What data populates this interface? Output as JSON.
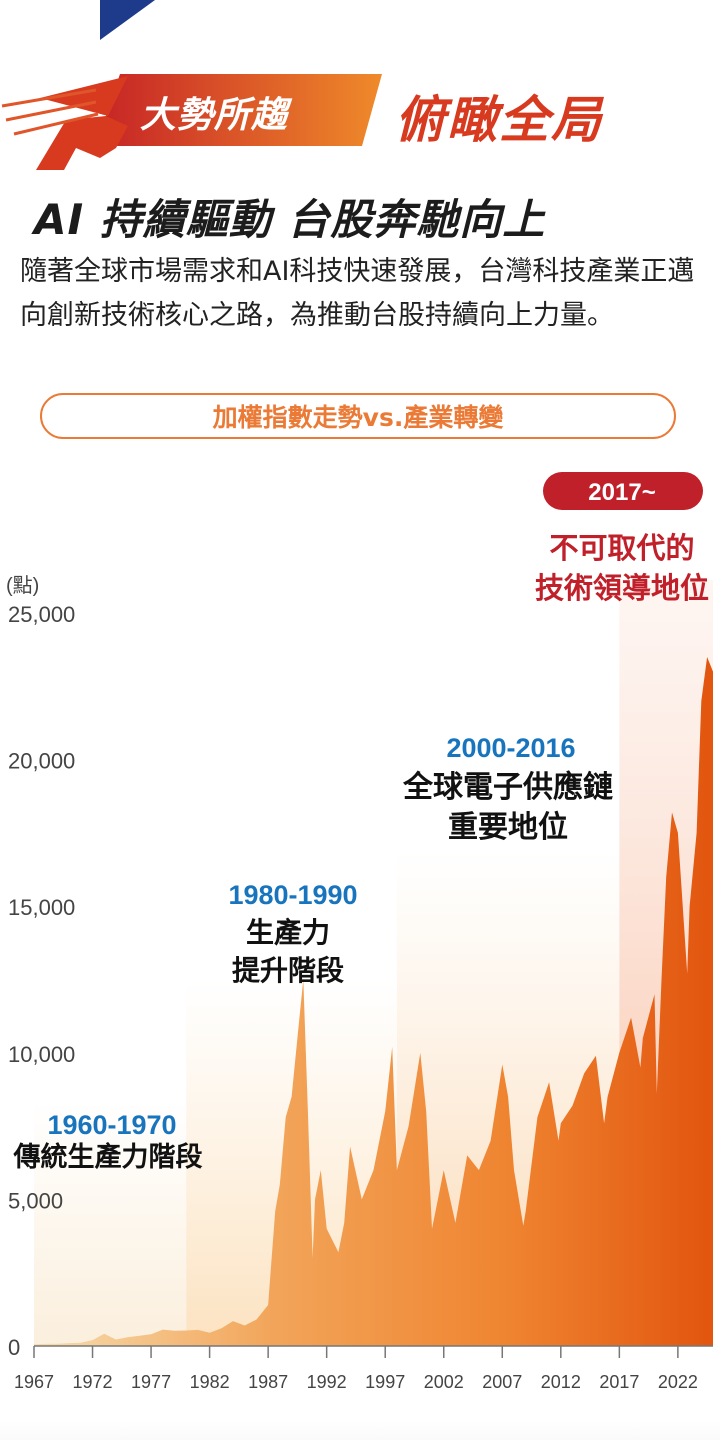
{
  "header": {
    "banner_label": "大勢所趨",
    "banner_title": "俯瞰全局",
    "headline": "AI 持續驅動 台股奔馳向上",
    "intro": "隨著全球市場需求和AI科技快速發展，台灣科技產業正邁向創新技術核心之路，為推動台股持續向上力量。",
    "pill_label": "加權指數走勢vs.產業轉變"
  },
  "colors": {
    "brand_red": "#d83a20",
    "accent_orange": "#ea7a35",
    "blue": "#1774bd",
    "navy": "#1e3a8a",
    "badge_red": "#c0202a"
  },
  "chart_data": {
    "type": "area",
    "ylabel": "(點)",
    "ylim": [
      0,
      25000
    ],
    "xlim": [
      1967,
      2025
    ],
    "y_ticks": [
      "0",
      "5,000",
      "10,000",
      "15,000",
      "20,000",
      "25,000"
    ],
    "x_ticks": [
      "1967",
      "1972",
      "1977",
      "1982",
      "1987",
      "1992",
      "1997",
      "2002",
      "2007",
      "2012",
      "2017",
      "2022"
    ],
    "series": [
      {
        "points": [
          [
            1967,
            60
          ],
          [
            1968,
            70
          ],
          [
            1969,
            80
          ],
          [
            1970,
            100
          ],
          [
            1971,
            110
          ],
          [
            1972,
            200
          ],
          [
            1973,
            420
          ],
          [
            1974,
            220
          ],
          [
            1975,
            300
          ],
          [
            1976,
            350
          ],
          [
            1977,
            400
          ],
          [
            1978,
            560
          ],
          [
            1979,
            520
          ],
          [
            1980,
            530
          ],
          [
            1981,
            550
          ],
          [
            1982,
            450
          ],
          [
            1983,
            600
          ],
          [
            1984,
            850
          ],
          [
            1985,
            700
          ],
          [
            1986,
            900
          ],
          [
            1987,
            1400
          ],
          [
            1987.6,
            4600
          ],
          [
            1988,
            5500
          ],
          [
            1988.5,
            7800
          ],
          [
            1989,
            8500
          ],
          [
            1989.5,
            10500
          ],
          [
            1990,
            12500
          ],
          [
            1990.4,
            8000
          ],
          [
            1990.8,
            3000
          ],
          [
            1991,
            5000
          ],
          [
            1991.5,
            6000
          ],
          [
            1992,
            4000
          ],
          [
            1993,
            3200
          ],
          [
            1993.5,
            4200
          ],
          [
            1994,
            6800
          ],
          [
            1995,
            5000
          ],
          [
            1996,
            6000
          ],
          [
            1997,
            8000
          ],
          [
            1997.6,
            10200
          ],
          [
            1998,
            6000
          ],
          [
            1999,
            7500
          ],
          [
            2000,
            10000
          ],
          [
            2000.5,
            8000
          ],
          [
            2001,
            4000
          ],
          [
            2001.5,
            5000
          ],
          [
            2002,
            6000
          ],
          [
            2003,
            4200
          ],
          [
            2004,
            6500
          ],
          [
            2005,
            6000
          ],
          [
            2006,
            7000
          ],
          [
            2007,
            9600
          ],
          [
            2007.5,
            8500
          ],
          [
            2008,
            6000
          ],
          [
            2008.8,
            4100
          ],
          [
            2009,
            4600
          ],
          [
            2010,
            7800
          ],
          [
            2011,
            9000
          ],
          [
            2011.8,
            7000
          ],
          [
            2012,
            7600
          ],
          [
            2013,
            8200
          ],
          [
            2014,
            9300
          ],
          [
            2015,
            9900
          ],
          [
            2015.7,
            7600
          ],
          [
            2016,
            8500
          ],
          [
            2017,
            10000
          ],
          [
            2018,
            11200
          ],
          [
            2018.8,
            9500
          ],
          [
            2019,
            10500
          ],
          [
            2020,
            12000
          ],
          [
            2020.2,
            8600
          ],
          [
            2020.6,
            12500
          ],
          [
            2021,
            16000
          ],
          [
            2021.5,
            18200
          ],
          [
            2022,
            17500
          ],
          [
            2022.8,
            12700
          ],
          [
            2023,
            15000
          ],
          [
            2023.6,
            17500
          ],
          [
            2024,
            22000
          ],
          [
            2024.5,
            23500
          ],
          [
            2025,
            23000
          ]
        ]
      }
    ],
    "eras": [
      {
        "start": 1967,
        "end": 1980,
        "years": "1960-1970",
        "label_lines": [
          "傳統生產力階段"
        ]
      },
      {
        "start": 1980,
        "end": 1998,
        "years": "1980-1990",
        "label_lines": [
          "生產力",
          "提升階段"
        ]
      },
      {
        "start": 1998,
        "end": 2017,
        "years": "2000-2016",
        "label_lines": [
          "全球電子供應鏈",
          "重要地位"
        ]
      },
      {
        "start": 2017,
        "end": 2025,
        "years": "2017~",
        "label_lines": [
          "不可取代的",
          "技術領導地位"
        ]
      }
    ]
  }
}
